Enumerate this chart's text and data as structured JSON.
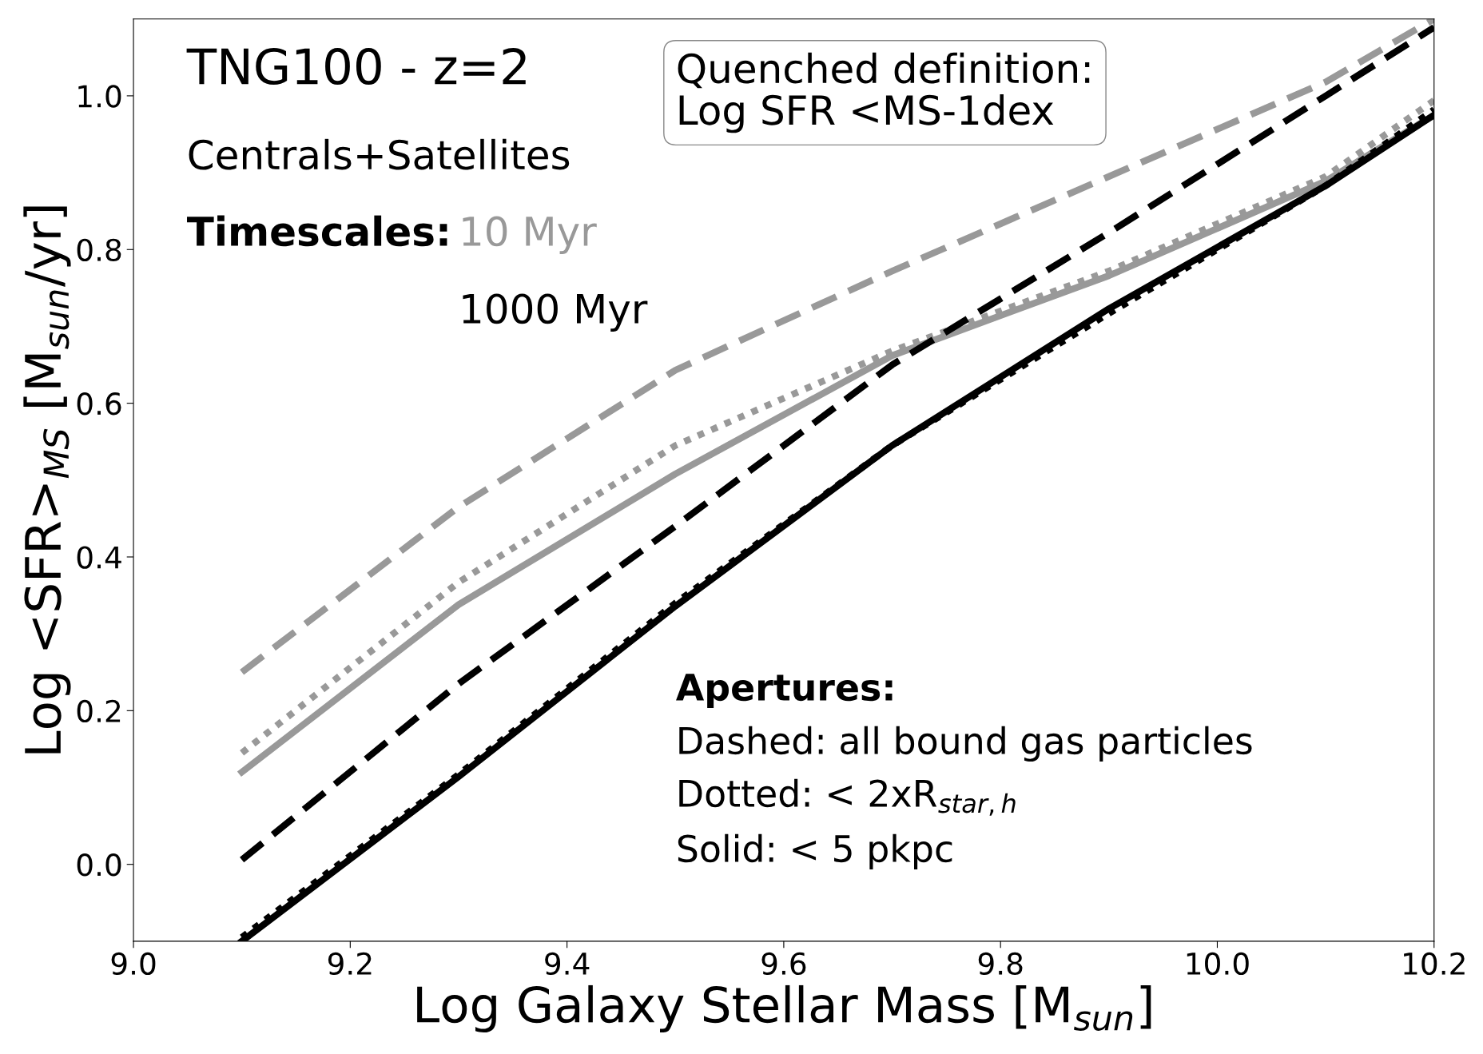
{
  "chart_data": {
    "type": "line",
    "xlabel": "Log Galaxy Stellar Mass [M$_{sun}$]",
    "ylabel": "Log <SFR>$_{MS}$ [M$_{sun}$/yr]",
    "x": [
      9.1,
      9.3,
      9.5,
      9.7,
      9.9,
      10.1,
      10.2
    ],
    "xlim": [
      9.0,
      10.2
    ],
    "ylim": [
      -0.1,
      1.1
    ],
    "xticks": [
      {
        "value": 9,
        "label": "9.0"
      },
      9.2,
      9.4,
      9.6,
      9.8,
      {
        "value": 10,
        "label": "10.0"
      },
      10.2
    ],
    "yticks": [
      {
        "value": 0,
        "label": "0.0"
      },
      0.2,
      0.4,
      0.6,
      0.8,
      {
        "value": 1,
        "label": "1.0"
      }
    ],
    "grid": false,
    "legend": false,
    "marker": "none",
    "series": [
      {
        "color": "#999999",
        "line_style": "dashed",
        "values": [
          0.25,
          0.465,
          0.643,
          0.772,
          0.895,
          1.018,
          1.1
        ]
      },
      {
        "color": "#999999",
        "line_style": "dotted",
        "values": [
          0.145,
          0.367,
          0.545,
          0.668,
          0.772,
          0.895,
          0.994
        ]
      },
      {
        "color": "#999999",
        "line_style": "solid",
        "values": [
          0.12,
          0.338,
          0.508,
          0.662,
          0.766,
          0.889,
          0.975
        ]
      },
      {
        "color": "#000000",
        "line_style": "dashed",
        "values": [
          0.006,
          0.235,
          0.44,
          0.65,
          0.822,
          1.0,
          1.089
        ]
      },
      {
        "color": "#000000",
        "line_style": "dotted",
        "values": [
          -0.095,
          0.117,
          0.34,
          0.545,
          0.717,
          0.883,
          0.982
        ]
      },
      {
        "color": "#000000",
        "line_style": "solid",
        "values": [
          -0.1,
          0.114,
          0.336,
          0.545,
          0.723,
          0.883,
          0.975
        ]
      }
    ],
    "annotations": [
      "TNG100 - z=2",
      "Centrals+Satellites",
      "Timescales:",
      "10 Myr",
      "1000 Myr",
      "Quenched definition:\nLog SFR <MS-1dex",
      "Apertures:",
      "Dashed: all bound gas particles",
      "Dotted: < 2xR$_{star,h}$",
      "Solid: < 5 pkpc"
    ]
  }
}
